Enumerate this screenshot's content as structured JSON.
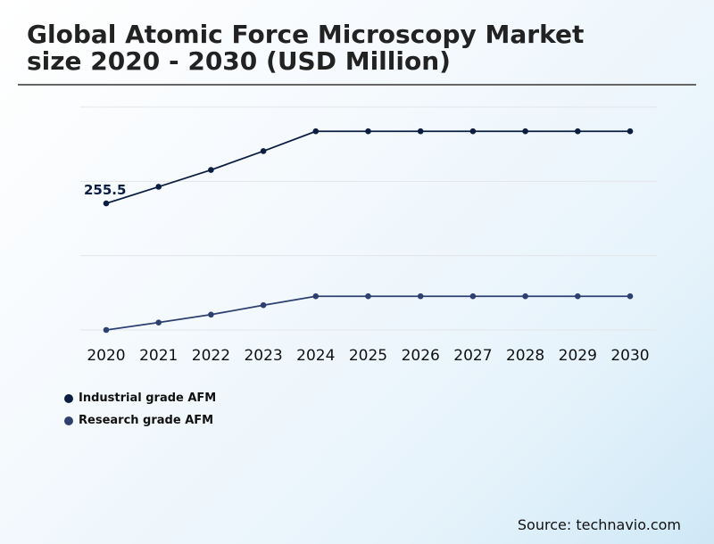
{
  "header": {
    "title_line1": "Global Atomic Force Microscopy Market",
    "title_line2": "size 2020 - 2030 (USD Million)"
  },
  "source": "Source: technavio.com",
  "chart_data": {
    "type": "line",
    "title": "Global Atomic Force Microscopy Market size 2020 - 2030 (USD Million)",
    "xlabel": "",
    "ylabel": "",
    "categories": [
      "2020",
      "2021",
      "2022",
      "2023",
      "2024",
      "2025",
      "2026",
      "2027",
      "2028",
      "2029",
      "2030"
    ],
    "ylim": [
      0,
      450
    ],
    "grid": true,
    "legend_position": "bottom-left",
    "series": [
      {
        "name": "Industrial grade AFM",
        "color": "#0b1d40",
        "values": [
          255.5,
          289,
          323,
          361,
          401,
          401,
          401,
          401,
          401,
          401,
          401
        ]
      },
      {
        "name": "Research grade AFM",
        "color": "#2e4070",
        "values": [
          0,
          15,
          31,
          50,
          68,
          68,
          68,
          68,
          68,
          68,
          68
        ]
      }
    ],
    "annotations": [
      {
        "series": 0,
        "index": 0,
        "text": "255.5"
      }
    ]
  }
}
